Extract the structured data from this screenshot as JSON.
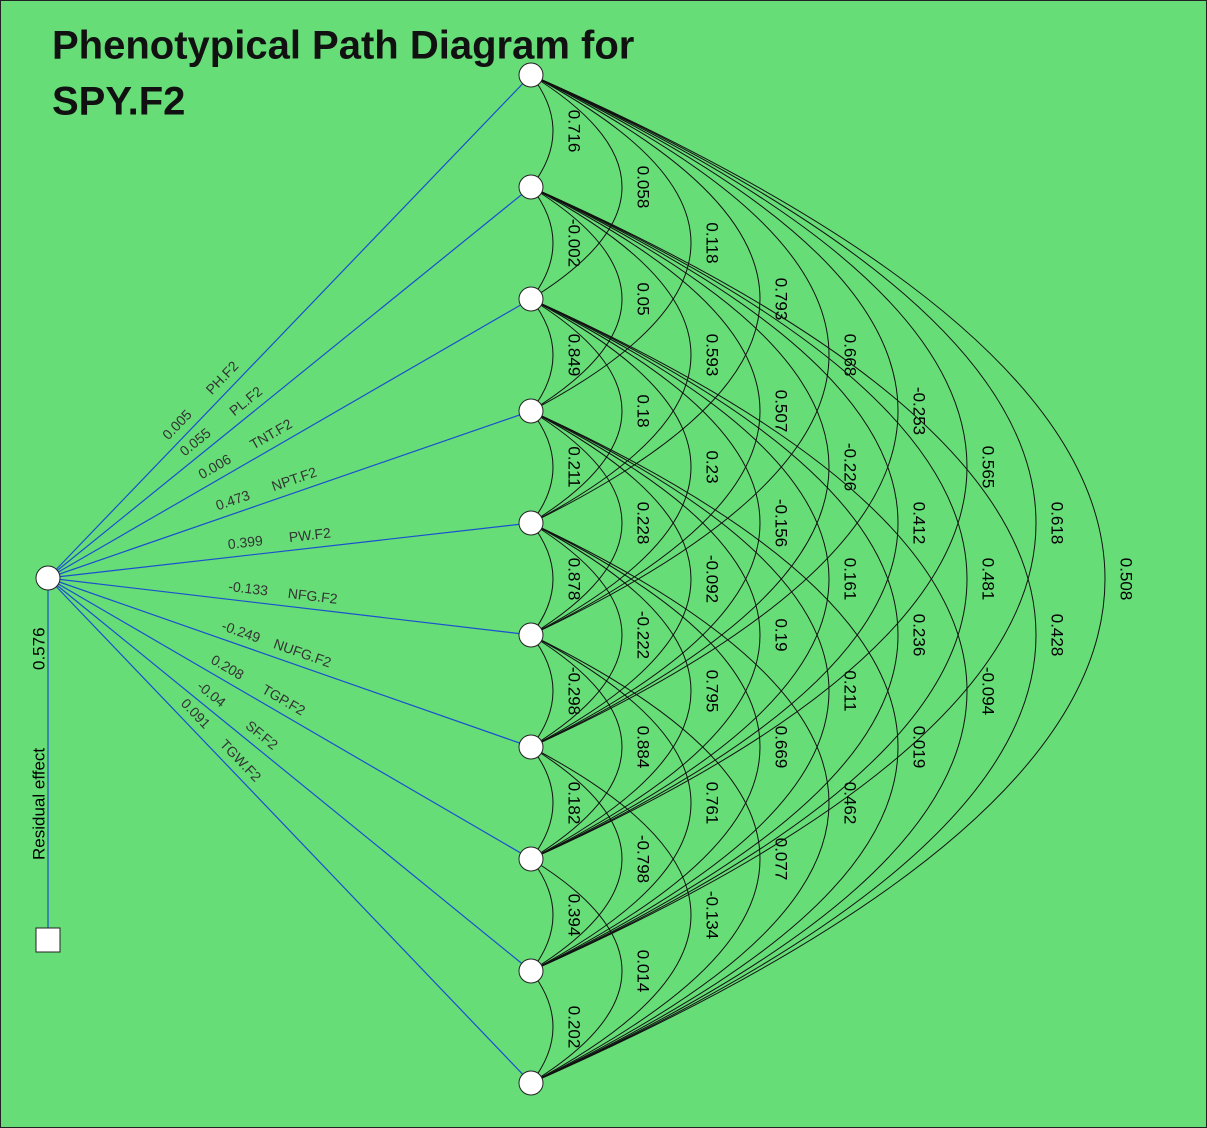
{
  "title": [
    "Phenotypical Path Diagram for",
    "SPY.F2"
  ],
  "residual": {
    "label": "Residual effect",
    "value": 0.576
  },
  "nodes": [
    {
      "name": "PH.F2",
      "direct": 0.005
    },
    {
      "name": "PL.F2",
      "direct": 0.055
    },
    {
      "name": "TNT.F2",
      "direct": 0.006
    },
    {
      "name": "NPT.F2",
      "direct": 0.473
    },
    {
      "name": "PW.F2",
      "direct": 0.399
    },
    {
      "name": "NFG.F2",
      "direct": -0.133
    },
    {
      "name": "NUFG.F2",
      "direct": -0.249
    },
    {
      "name": "TGP.F2",
      "direct": 0.208
    },
    {
      "name": "SF.F2",
      "direct": -0.04
    },
    {
      "name": "TGW.F2",
      "direct": 0.091
    }
  ],
  "correlations": [
    [
      0.716,
      -0.002,
      0.849,
      0.211,
      0.878,
      -0.298,
      0.182,
      0.394,
      0.202
    ],
    [
      0.058,
      0.05,
      0.18,
      0.228,
      -0.222,
      0.884,
      -0.798,
      0.014
    ],
    [
      0.118,
      0.593,
      0.23,
      -0.092,
      0.795,
      0.761,
      -0.134
    ],
    [
      0.793,
      0.507,
      -0.156,
      0.19,
      0.669,
      0.077
    ],
    [
      0.668,
      -0.226,
      0.161,
      0.211,
      0.462
    ],
    [
      -0.253,
      0.412,
      0.236,
      0.019
    ],
    [
      0.565,
      0.481,
      -0.094
    ],
    [
      0.618,
      0.428
    ],
    [
      0.508
    ]
  ]
}
